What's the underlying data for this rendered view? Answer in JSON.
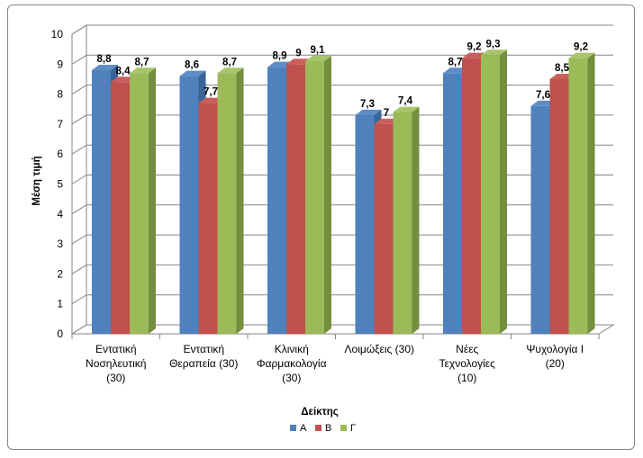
{
  "chart_data": {
    "type": "bar",
    "title": "",
    "xlabel": "Δείκτης",
    "ylabel": "Μέση τιμή",
    "ylim": [
      0,
      10
    ],
    "yticks": [
      "0",
      "1",
      "2",
      "3",
      "4",
      "5",
      "6",
      "7",
      "8",
      "9",
      "10"
    ],
    "grid": true,
    "legend_position": "bottom",
    "categories": [
      [
        "Εντατική",
        "Νοσηλευτική",
        "(30)"
      ],
      [
        "Εντατική",
        "Θεραπεία (30)"
      ],
      [
        "Κλινική",
        "Φαρμακολογία",
        "(30)"
      ],
      [
        "Λοιμώξεις (30)"
      ],
      [
        "Νέες",
        "Τεχνολογίες",
        "(10)"
      ],
      [
        "Ψυχολογία Ι",
        "(20)"
      ]
    ],
    "series": [
      {
        "name": "Α",
        "color": "#4F81BD",
        "side": "#3A6496",
        "top": "#5E8DC6",
        "values": [
          8.8,
          8.6,
          8.9,
          7.3,
          8.7,
          7.6
        ],
        "labels": [
          "8,8",
          "8,6",
          "8,9",
          "7,3",
          "8,7",
          "7,6"
        ]
      },
      {
        "name": "Β",
        "color": "#C0504D",
        "side": "#963B39",
        "top": "#C95F5C",
        "values": [
          8.4,
          7.7,
          9.0,
          7.0,
          9.2,
          8.5
        ],
        "labels": [
          "8,4",
          "7,7",
          "9",
          "7",
          "9,2",
          "8,5"
        ]
      },
      {
        "name": "Γ",
        "color": "#9BBB59",
        "side": "#748E40",
        "top": "#A7C56A",
        "values": [
          8.7,
          8.7,
          9.1,
          7.4,
          9.3,
          9.2
        ],
        "labels": [
          "8,7",
          "8,7",
          "9,1",
          "7,4",
          "9,3",
          "9,2"
        ]
      }
    ]
  }
}
